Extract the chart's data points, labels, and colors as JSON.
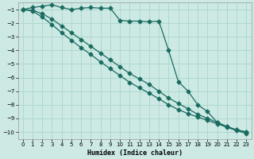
{
  "xlabel": "Humidex (Indice chaleur)",
  "ylabel": "",
  "background_color": "#cce9e4",
  "grid_color": "#b0d8d0",
  "line_color": "#1a6b60",
  "xlim": [
    -0.5,
    23.5
  ],
  "ylim": [
    -10.5,
    -0.5
  ],
  "xticks": [
    0,
    1,
    2,
    3,
    4,
    5,
    6,
    7,
    8,
    9,
    10,
    11,
    12,
    13,
    14,
    15,
    16,
    17,
    18,
    19,
    20,
    21,
    22,
    23
  ],
  "yticks": [
    -10,
    -9,
    -8,
    -7,
    -6,
    -5,
    -4,
    -3,
    -2,
    -1
  ],
  "curve1_x": [
    0,
    1,
    2,
    3,
    4,
    5,
    6,
    7,
    8,
    9,
    10,
    11,
    12,
    13,
    14,
    15,
    16,
    17,
    18,
    19,
    20,
    21,
    22,
    23
  ],
  "curve1_y": [
    -1.0,
    -0.85,
    -0.75,
    -0.65,
    -0.85,
    -1.0,
    -0.9,
    -0.85,
    -0.9,
    -0.9,
    -1.8,
    -1.85,
    -1.85,
    -1.9,
    -1.85,
    -4.0,
    -6.3,
    -7.0,
    -8.0,
    -8.5,
    -9.3,
    -9.6,
    -9.85,
    -10.0
  ],
  "curve2_x": [
    0,
    1,
    2,
    3,
    4,
    5,
    6,
    7,
    8,
    9,
    10,
    11,
    12,
    13,
    14,
    15,
    16,
    17,
    18,
    19,
    20,
    21,
    22,
    23
  ],
  "curve2_y": [
    -1.0,
    -1.05,
    -1.3,
    -1.7,
    -2.2,
    -2.7,
    -3.2,
    -3.7,
    -4.2,
    -4.7,
    -5.2,
    -5.7,
    -6.1,
    -6.5,
    -7.0,
    -7.5,
    -7.9,
    -8.3,
    -8.7,
    -9.0,
    -9.3,
    -9.6,
    -9.85,
    -10.0
  ],
  "curve3_x": [
    0,
    1,
    2,
    3,
    4,
    5,
    6,
    7,
    8,
    9,
    10,
    11,
    12,
    13,
    14,
    15,
    16,
    17,
    18,
    19,
    20,
    21,
    22,
    23
  ],
  "curve3_y": [
    -1.0,
    -1.1,
    -1.55,
    -2.1,
    -2.7,
    -3.25,
    -3.8,
    -4.3,
    -4.85,
    -5.35,
    -5.85,
    -6.35,
    -6.75,
    -7.15,
    -7.55,
    -8.0,
    -8.35,
    -8.65,
    -8.9,
    -9.15,
    -9.4,
    -9.65,
    -9.9,
    -10.1
  ]
}
